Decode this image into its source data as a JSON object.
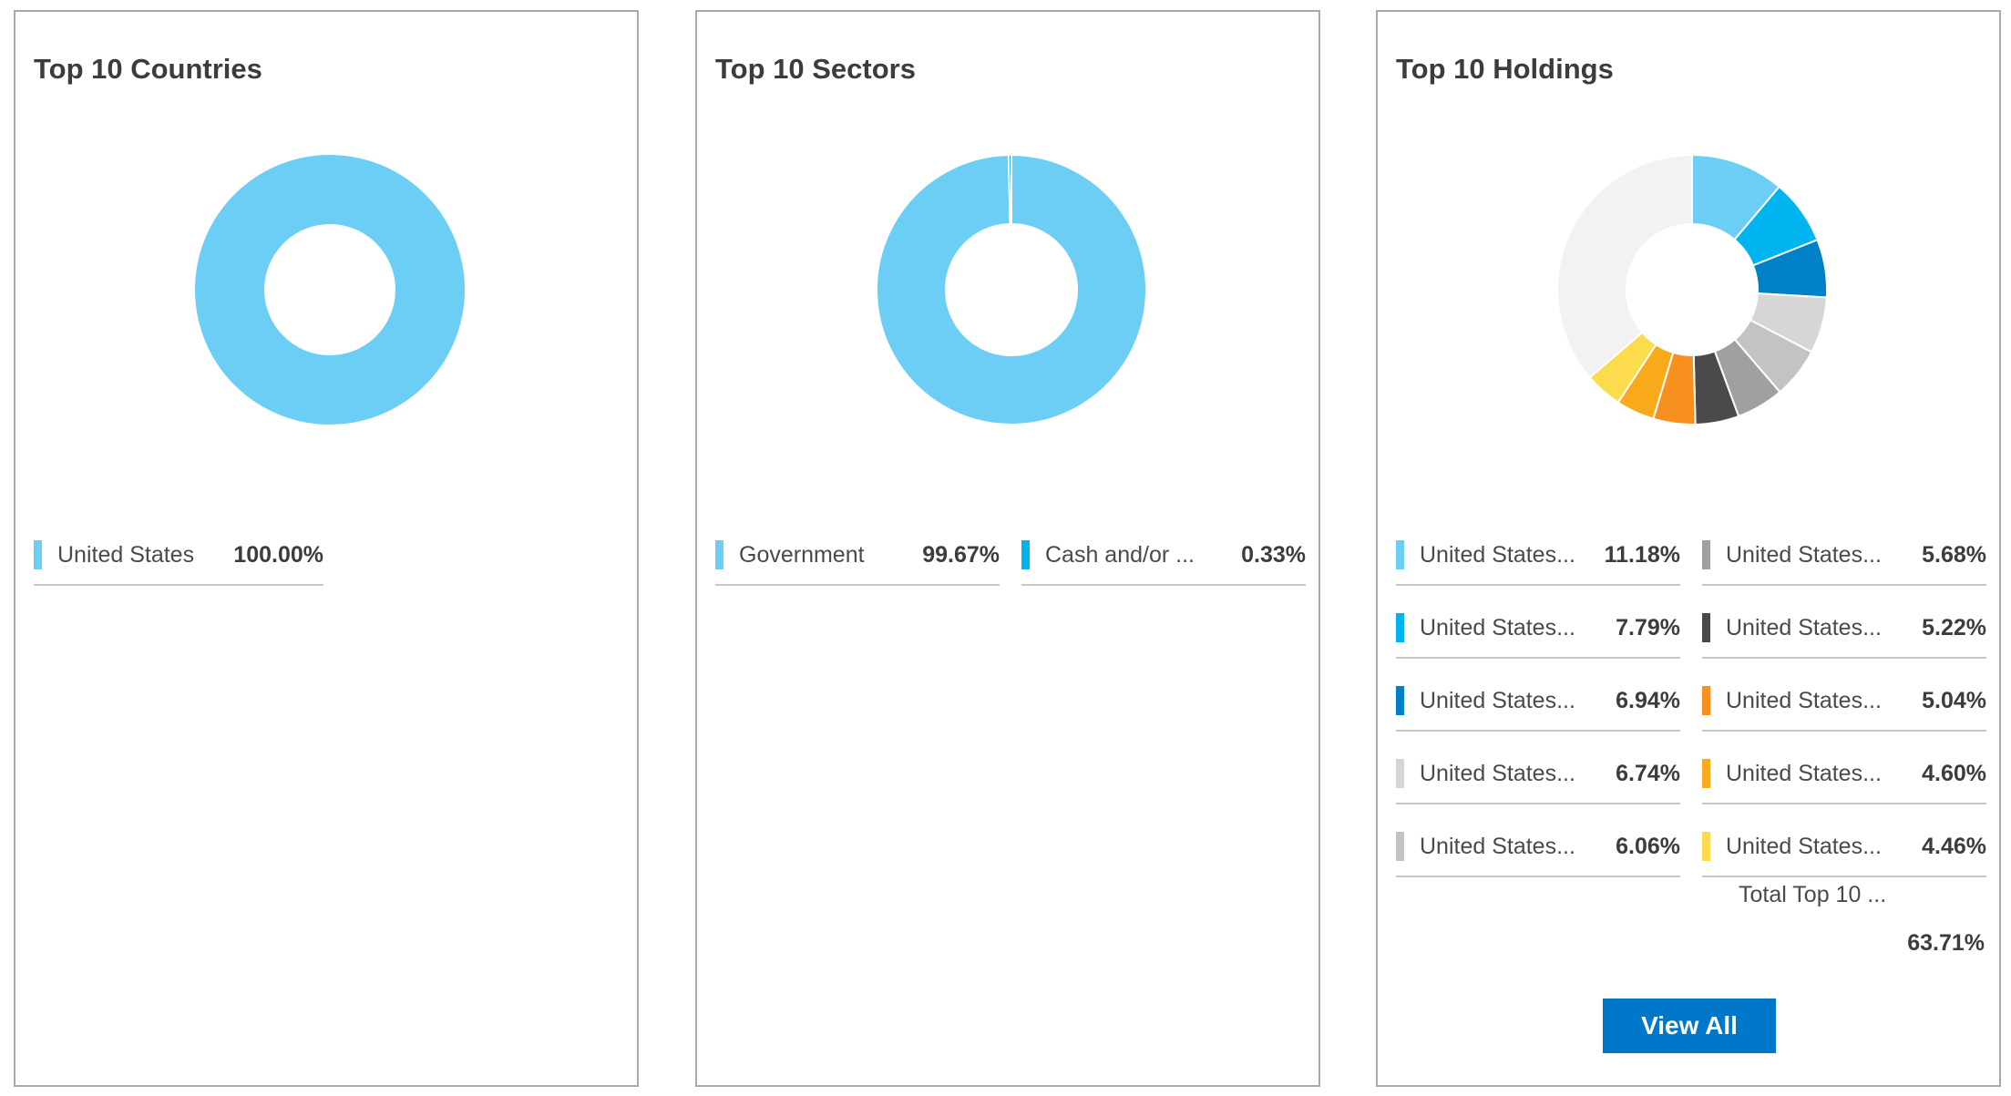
{
  "panels": {
    "countries": {
      "title": "Top 10 Countries",
      "legend": [
        {
          "label": "United States",
          "value": "100.00%",
          "color": "#6ccef5"
        }
      ]
    },
    "sectors": {
      "title": "Top 10 Sectors",
      "legend": [
        {
          "label": "Government",
          "value": "99.67%",
          "color": "#6ccef5"
        },
        {
          "label": "Cash and/or ...",
          "value": "0.33%",
          "color": "#00b5ef"
        }
      ]
    },
    "holdings": {
      "title": "Top 10 Holdings",
      "legend": [
        {
          "label": "United States...",
          "value": "11.18%",
          "color": "#6ccef5"
        },
        {
          "label": "United States...",
          "value": "7.79%",
          "color": "#00b5ef"
        },
        {
          "label": "United States...",
          "value": "6.94%",
          "color": "#0080c6"
        },
        {
          "label": "United States...",
          "value": "6.74%",
          "color": "#d6d6d6"
        },
        {
          "label": "United States...",
          "value": "6.06%",
          "color": "#c3c3c3"
        },
        {
          "label": "United States...",
          "value": "5.68%",
          "color": "#a0a0a0"
        },
        {
          "label": "United States...",
          "value": "5.22%",
          "color": "#4a4a4a"
        },
        {
          "label": "United States...",
          "value": "5.04%",
          "color": "#f7901e"
        },
        {
          "label": "United States...",
          "value": "4.60%",
          "color": "#f8aa1a"
        },
        {
          "label": "United States...",
          "value": "4.46%",
          "color": "#fcdc4d"
        }
      ],
      "total_label": "Total Top 10 ...",
      "total_value": "63.71%",
      "view_all_label": "View All",
      "remainder_color": "#f2f2f2"
    }
  },
  "chart_data": [
    {
      "type": "pie",
      "title": "Top 10 Countries",
      "categories": [
        "United States"
      ],
      "values": [
        100.0
      ],
      "colors": [
        "#6ccef5"
      ]
    },
    {
      "type": "pie",
      "title": "Top 10 Sectors",
      "categories": [
        "Government",
        "Cash and/or ..."
      ],
      "values": [
        99.67,
        0.33
      ],
      "colors": [
        "#6ccef5",
        "#00b5ef"
      ]
    },
    {
      "type": "pie",
      "title": "Top 10 Holdings",
      "categories": [
        "United States...",
        "United States...",
        "United States...",
        "United States...",
        "United States...",
        "United States...",
        "United States...",
        "United States...",
        "United States...",
        "United States..."
      ],
      "values": [
        11.18,
        7.79,
        6.94,
        6.74,
        6.06,
        5.68,
        5.22,
        5.04,
        4.6,
        4.46
      ],
      "colors": [
        "#6ccef5",
        "#00b5ef",
        "#0080c6",
        "#d6d6d6",
        "#c3c3c3",
        "#a0a0a0",
        "#4a4a4a",
        "#f7901e",
        "#f8aa1a",
        "#fcdc4d"
      ],
      "total": 63.71
    }
  ]
}
